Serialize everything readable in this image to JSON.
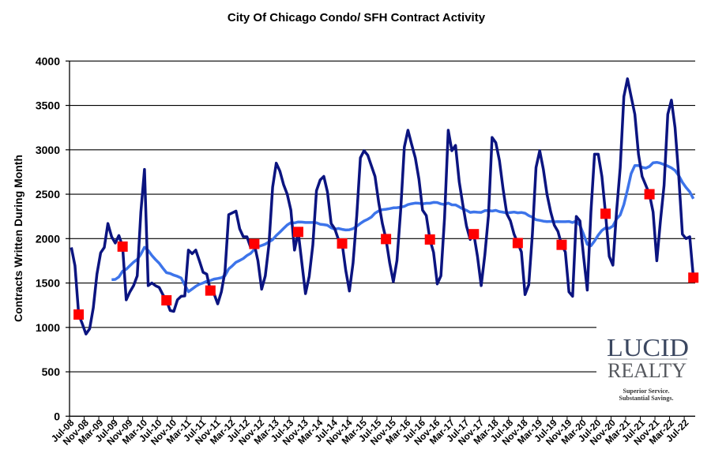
{
  "chart_data": {
    "type": "line",
    "title": "City Of Chicago Condo/ SFH Contract Activity",
    "xlabel": "",
    "ylabel": "Contracts Written During Month",
    "ylim": [
      0,
      4000
    ],
    "yticks": [
      0,
      500,
      1000,
      1500,
      2000,
      2500,
      3000,
      3500,
      4000
    ],
    "grid": "horizontal",
    "legend": "none",
    "xtick_labels": [
      "Jul-08",
      "Nov-08",
      "Mar-09",
      "Jul-09",
      "Nov-09",
      "Mar-10",
      "Jul-10",
      "Nov-10",
      "Mar-11",
      "Jul-11",
      "Nov-11",
      "Mar-12",
      "Jul-12",
      "Nov-12",
      "Mar-13",
      "Jul-13",
      "Nov-13",
      "Mar-14",
      "Jul-14",
      "Nov-14",
      "Mar-15",
      "Jul-15",
      "Nov-15",
      "Mar-16",
      "Jul-16",
      "Nov-16",
      "Mar-17",
      "Jul-17",
      "Nov-17",
      "Mar-18",
      "Jul-18",
      "Nov-18",
      "Mar-19",
      "Jul-19",
      "Nov-19",
      "Mar-20",
      "Jul-20",
      "Nov-20",
      "Mar-21",
      "Jul-21",
      "Nov-21",
      "Mar-22",
      "Jul-22"
    ],
    "categories": [
      "Jul-08",
      "Aug-08",
      "Sep-08",
      "Oct-08",
      "Nov-08",
      "Dec-08",
      "Jan-09",
      "Feb-09",
      "Mar-09",
      "Apr-09",
      "May-09",
      "Jun-09",
      "Jul-09",
      "Aug-09",
      "Sep-09",
      "Oct-09",
      "Nov-09",
      "Dec-09",
      "Jan-10",
      "Feb-10",
      "Mar-10",
      "Apr-10",
      "May-10",
      "Jun-10",
      "Jul-10",
      "Aug-10",
      "Sep-10",
      "Oct-10",
      "Nov-10",
      "Dec-10",
      "Jan-11",
      "Feb-11",
      "Mar-11",
      "Apr-11",
      "May-11",
      "Jun-11",
      "Jul-11",
      "Aug-11",
      "Sep-11",
      "Oct-11",
      "Nov-11",
      "Dec-11",
      "Jan-12",
      "Feb-12",
      "Mar-12",
      "Apr-12",
      "May-12",
      "Jun-12",
      "Jul-12",
      "Aug-12",
      "Sep-12",
      "Oct-12",
      "Nov-12",
      "Dec-12",
      "Jan-13",
      "Feb-13",
      "Mar-13",
      "Apr-13",
      "May-13",
      "Jun-13",
      "Jul-13",
      "Aug-13",
      "Sep-13",
      "Oct-13",
      "Nov-13",
      "Dec-13",
      "Jan-14",
      "Feb-14",
      "Mar-14",
      "Apr-14",
      "May-14",
      "Jun-14",
      "Jul-14",
      "Aug-14",
      "Sep-14",
      "Oct-14",
      "Nov-14",
      "Dec-14",
      "Jan-15",
      "Feb-15",
      "Mar-15",
      "Apr-15",
      "May-15",
      "Jun-15",
      "Jul-15",
      "Aug-15",
      "Sep-15",
      "Oct-15",
      "Nov-15",
      "Dec-15",
      "Jan-16",
      "Feb-16",
      "Mar-16",
      "Apr-16",
      "May-16",
      "Jun-16",
      "Jul-16",
      "Aug-16",
      "Sep-16",
      "Oct-16",
      "Nov-16",
      "Dec-16",
      "Jan-17",
      "Feb-17",
      "Mar-17",
      "Apr-17",
      "May-17",
      "Jun-17",
      "Jul-17",
      "Aug-17",
      "Sep-17",
      "Oct-17",
      "Nov-17",
      "Dec-17",
      "Jan-18",
      "Feb-18",
      "Mar-18",
      "Apr-18",
      "May-18",
      "Jun-18",
      "Jul-18",
      "Aug-18",
      "Sep-18",
      "Oct-18",
      "Nov-18",
      "Dec-18",
      "Jan-19",
      "Feb-19",
      "Mar-19",
      "Apr-19",
      "May-19",
      "Jun-19",
      "Jul-19",
      "Aug-19",
      "Sep-19",
      "Oct-19",
      "Nov-19",
      "Dec-19",
      "Jan-20",
      "Feb-20",
      "Mar-20",
      "Apr-20",
      "May-20",
      "Jun-20",
      "Jul-20",
      "Aug-20",
      "Sep-20",
      "Oct-20",
      "Nov-20",
      "Dec-20",
      "Jan-21",
      "Feb-21",
      "Mar-21",
      "Apr-21",
      "May-21",
      "Jun-21",
      "Jul-21",
      "Aug-21",
      "Sep-21",
      "Oct-21",
      "Nov-21",
      "Dec-21",
      "Jan-22",
      "Feb-22",
      "Mar-22",
      "Apr-22",
      "May-22",
      "Jun-22",
      "Jul-22",
      "Aug-22",
      "Sep-22"
    ],
    "series": [
      {
        "color": "#0b1480",
        "values": [
          1900,
          1695,
          1145,
          1040,
          925,
          985,
          1220,
          1600,
          1840,
          1900,
          2170,
          2020,
          1950,
          2035,
          1910,
          1310,
          1400,
          1470,
          1580,
          2300,
          2780,
          1470,
          1500,
          1470,
          1450,
          1370,
          1305,
          1190,
          1180,
          1310,
          1350,
          1355,
          1870,
          1830,
          1870,
          1750,
          1620,
          1600,
          1415,
          1380,
          1265,
          1400,
          1630,
          2270,
          2290,
          2310,
          2110,
          2020,
          2020,
          1900,
          1940,
          1750,
          1430,
          1580,
          1930,
          2580,
          2850,
          2760,
          2610,
          2500,
          2320,
          1870,
          2075,
          1725,
          1380,
          1575,
          1930,
          2540,
          2660,
          2700,
          2525,
          2170,
          2110,
          1990,
          1945,
          1640,
          1410,
          1725,
          2260,
          2910,
          2990,
          2940,
          2820,
          2700,
          2405,
          2170,
          1995,
          1725,
          1515,
          1755,
          2320,
          3030,
          3220,
          3060,
          2910,
          2670,
          2320,
          2260,
          1990,
          1845,
          1490,
          1580,
          2230,
          3220,
          2990,
          3050,
          2640,
          2380,
          2140,
          1990,
          2050,
          1800,
          1470,
          1815,
          2260,
          3140,
          3080,
          2880,
          2560,
          2280,
          2200,
          2050,
          1950,
          1850,
          1370,
          1480,
          2050,
          2800,
          2990,
          2780,
          2500,
          2300,
          2150,
          2080,
          1930,
          1850,
          1400,
          1350,
          2250,
          2200,
          1800,
          1420,
          2300,
          2950,
          2950,
          2700,
          2280,
          1800,
          1700,
          2300,
          2800,
          3600,
          3800,
          3600,
          3400,
          2950,
          2700,
          2600,
          2500,
          2300,
          1750,
          2200,
          2600,
          3400,
          3560,
          3250,
          2700,
          2050,
          2000,
          2020,
          1560
        ]
      },
      {
        "color": "#3d74ea",
        "trend_window": 12
      }
    ],
    "markers": {
      "color": "#ff0000",
      "shape": "square",
      "categories": [
        "Sep-08",
        "Sep-09",
        "Sep-10",
        "Sep-11",
        "Sep-12",
        "Sep-13",
        "Sep-14",
        "Sep-15",
        "Sep-16",
        "Sep-17",
        "Sep-18",
        "Sep-19",
        "Sep-20",
        "Sep-21",
        "Sep-22"
      ],
      "values": [
        1145,
        1910,
        1305,
        1415,
        1940,
        2075,
        1945,
        1995,
        1990,
        2050,
        1950,
        1930,
        2280,
        2500,
        1560
      ]
    }
  },
  "logo": {
    "line1": "LUCID",
    "line2": "REALTY",
    "tagline1": "Superior Service.",
    "tagline2": "Substantial Savings."
  }
}
